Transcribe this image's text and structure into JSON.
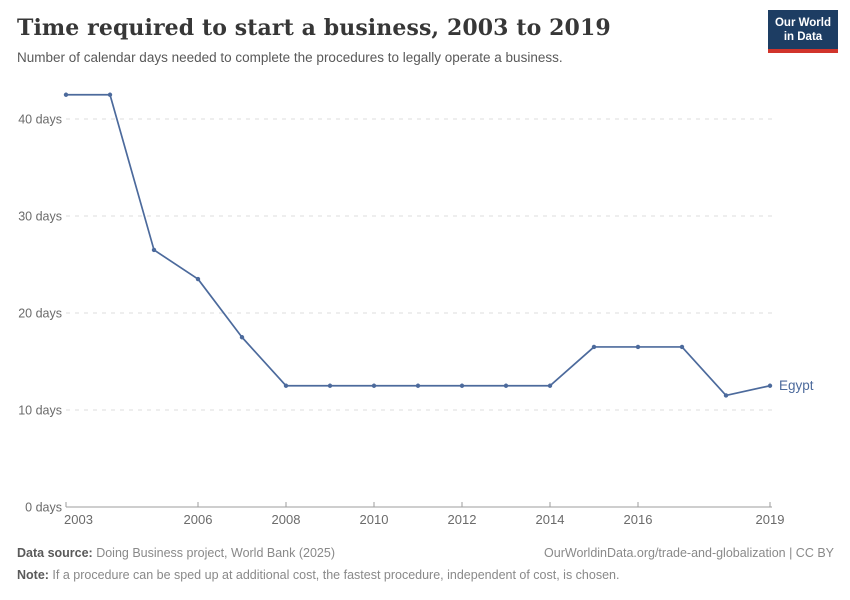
{
  "header": {
    "title": "Time required to start a business, 2003 to 2019",
    "subtitle": "Number of calendar days needed to complete the procedures to legally operate a business.",
    "logo": {
      "line1": "Our World",
      "line2": "in Data",
      "bg_color": "#1d3d63",
      "stripe_color": "#d1342b"
    }
  },
  "chart_data": {
    "type": "line",
    "title": "Time required to start a business, 2003 to 2019",
    "xlabel": "",
    "ylabel": "days",
    "xlim": [
      2003,
      2019
    ],
    "ylim": [
      0,
      44
    ],
    "grid": "dashed-horizontal",
    "legend_position": "end-of-line-label",
    "x": [
      2003,
      2004,
      2005,
      2006,
      2007,
      2008,
      2009,
      2010,
      2011,
      2012,
      2013,
      2014,
      2015,
      2016,
      2017,
      2018,
      2019
    ],
    "series": [
      {
        "name": "Egypt",
        "color": "#4c6a9c",
        "values": [
          42.5,
          42.5,
          26.5,
          23.5,
          17.5,
          12.5,
          12.5,
          12.5,
          12.5,
          12.5,
          12.5,
          12.5,
          16.5,
          16.5,
          16.5,
          11.5,
          12.5
        ]
      }
    ],
    "x_ticks": [
      {
        "value": 2003,
        "label": "2003"
      },
      {
        "value": 2006,
        "label": "2006"
      },
      {
        "value": 2008,
        "label": "2008"
      },
      {
        "value": 2010,
        "label": "2010"
      },
      {
        "value": 2012,
        "label": "2012"
      },
      {
        "value": 2014,
        "label": "2014"
      },
      {
        "value": 2016,
        "label": "2016"
      },
      {
        "value": 2019,
        "label": "2019"
      }
    ],
    "y_ticks": [
      {
        "value": 0,
        "label": "0 days"
      },
      {
        "value": 10,
        "label": "10 days"
      },
      {
        "value": 20,
        "label": "20 days"
      },
      {
        "value": 30,
        "label": "30 days"
      },
      {
        "value": 40,
        "label": "40 days"
      }
    ],
    "colors": {
      "gridline": "#dcdcdc",
      "axis": "#9e9e9e",
      "tick_label": "#6b6b6b",
      "series_label": "#4c6a9c"
    }
  },
  "footer": {
    "data_source_label": "Data source:",
    "data_source_text": " Doing Business project, World Bank (2025)",
    "attribution": "OurWorldinData.org/trade-and-globalization | CC BY",
    "note_label": "Note:",
    "note_text": " If a procedure can be sped up at additional cost, the fastest procedure, independent of cost, is chosen."
  }
}
